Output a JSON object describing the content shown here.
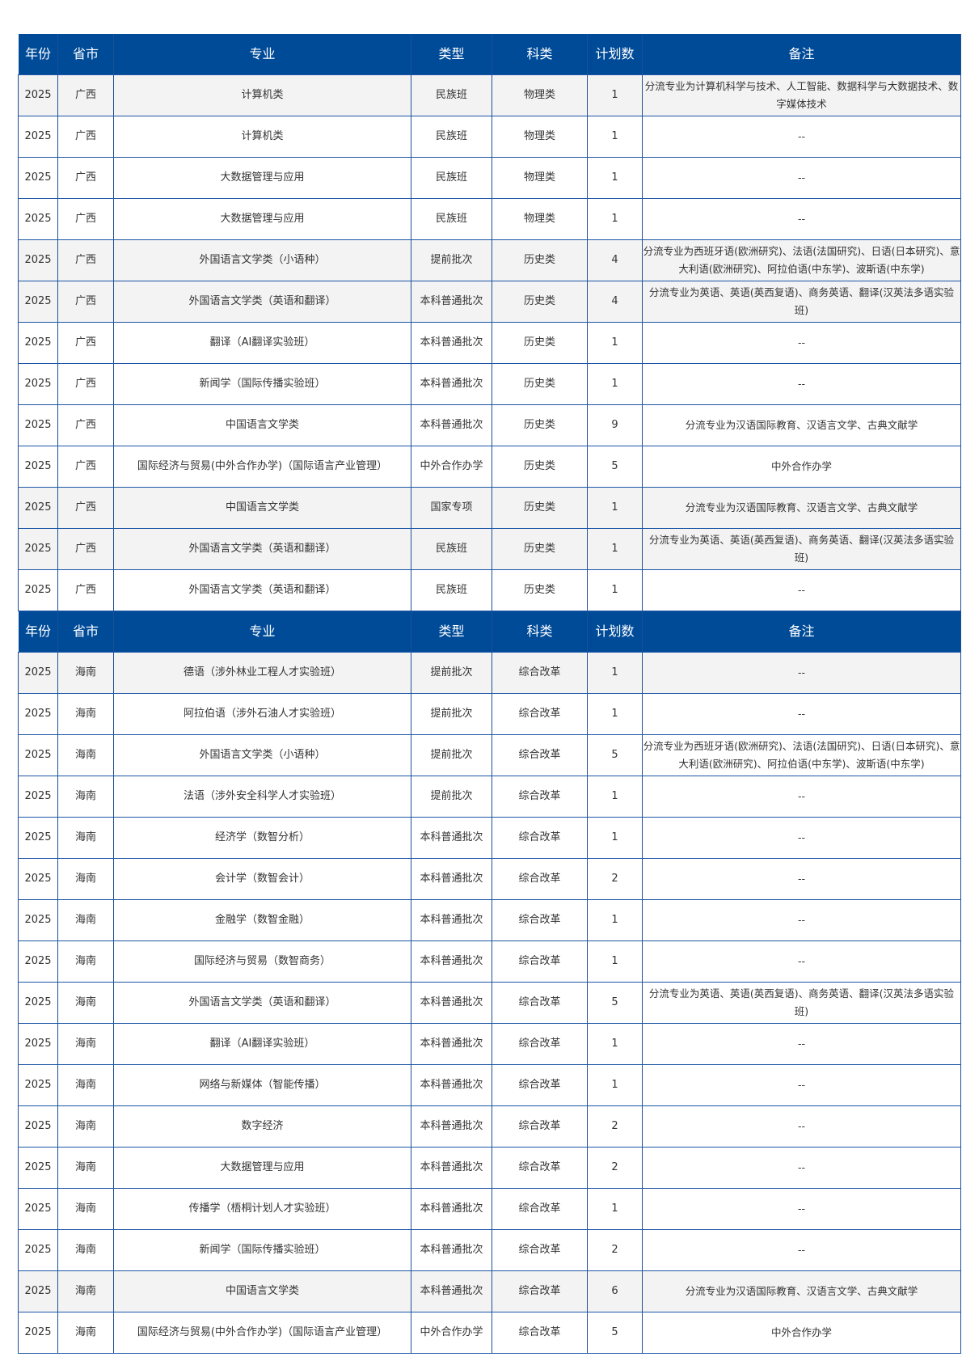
{
  "columns": [
    "年份",
    "省市",
    "专业",
    "类型",
    "科类",
    "计划数",
    "备注"
  ],
  "colors": {
    "header_bg": "#004b98",
    "border": "#1d56a6",
    "alt_row": "#f3f3f3"
  },
  "sections": [
    {
      "rows": [
        {
          "year": "2025",
          "province": "广西",
          "major": "计算机类",
          "type": "民族班",
          "category": "物理类",
          "plan": "1",
          "note": "分流专业为计算机科学与技术、人工智能、数据科学与大数据技术、数字媒体技术",
          "gray": true
        },
        {
          "year": "2025",
          "province": "广西",
          "major": "计算机类",
          "type": "民族班",
          "category": "物理类",
          "plan": "1",
          "note": "--"
        },
        {
          "year": "2025",
          "province": "广西",
          "major": "大数据管理与应用",
          "type": "民族班",
          "category": "物理类",
          "plan": "1",
          "note": "--"
        },
        {
          "year": "2025",
          "province": "广西",
          "major": "大数据管理与应用",
          "type": "民族班",
          "category": "物理类",
          "plan": "1",
          "note": "--"
        },
        {
          "year": "2025",
          "province": "广西",
          "major": "外国语言文学类（小语种）",
          "type": "提前批次",
          "category": "历史类",
          "plan": "4",
          "note": "分流专业为西班牙语(欧洲研究)、法语(法国研究)、日语(日本研究)、意大利语(欧洲研究)、阿拉伯语(中东学)、波斯语(中东学)",
          "gray": true
        },
        {
          "year": "2025",
          "province": "广西",
          "major": "外国语言文学类（英语和翻译）",
          "type": "本科普通批次",
          "category": "历史类",
          "plan": "4",
          "note": "分流专业为英语、英语(英西复语)、商务英语、翻译(汉英法多语实验班)",
          "gray": true
        },
        {
          "year": "2025",
          "province": "广西",
          "major": "翻译（AI翻译实验班）",
          "type": "本科普通批次",
          "category": "历史类",
          "plan": "1",
          "note": "--"
        },
        {
          "year": "2025",
          "province": "广西",
          "major": "新闻学（国际传播实验班）",
          "type": "本科普通批次",
          "category": "历史类",
          "plan": "1",
          "note": "--"
        },
        {
          "year": "2025",
          "province": "广西",
          "major": "中国语言文学类",
          "type": "本科普通批次",
          "category": "历史类",
          "plan": "9",
          "note": "分流专业为汉语国际教育、汉语言文学、古典文献学"
        },
        {
          "year": "2025",
          "province": "广西",
          "major": "国际经济与贸易(中外合作办学)（国际语言产业管理）",
          "type": "中外合作办学",
          "category": "历史类",
          "plan": "5",
          "note": "中外合作办学"
        },
        {
          "year": "2025",
          "province": "广西",
          "major": "中国语言文学类",
          "type": "国家专项",
          "category": "历史类",
          "plan": "1",
          "note": "分流专业为汉语国际教育、汉语言文学、古典文献学",
          "gray": true
        },
        {
          "year": "2025",
          "province": "广西",
          "major": "外国语言文学类（英语和翻译）",
          "type": "民族班",
          "category": "历史类",
          "plan": "1",
          "note": "分流专业为英语、英语(英西复语)、商务英语、翻译(汉英法多语实验班)",
          "gray": true
        },
        {
          "year": "2025",
          "province": "广西",
          "major": "外国语言文学类（英语和翻译）",
          "type": "民族班",
          "category": "历史类",
          "plan": "1",
          "note": "--"
        }
      ]
    },
    {
      "rows": [
        {
          "year": "2025",
          "province": "海南",
          "major": "德语（涉外林业工程人才实验班）",
          "type": "提前批次",
          "category": "综合改革",
          "plan": "1",
          "note": "--",
          "gray": true
        },
        {
          "year": "2025",
          "province": "海南",
          "major": "阿拉伯语（涉外石油人才实验班）",
          "type": "提前批次",
          "category": "综合改革",
          "plan": "1",
          "note": "--"
        },
        {
          "year": "2025",
          "province": "海南",
          "major": "外国语言文学类（小语种）",
          "type": "提前批次",
          "category": "综合改革",
          "plan": "5",
          "note": "分流专业为西班牙语(欧洲研究)、法语(法国研究)、日语(日本研究)、意大利语(欧洲研究)、阿拉伯语(中东学)、波斯语(中东学)"
        },
        {
          "year": "2025",
          "province": "海南",
          "major": "法语（涉外安全科学人才实验班）",
          "type": "提前批次",
          "category": "综合改革",
          "plan": "1",
          "note": "--"
        },
        {
          "year": "2025",
          "province": "海南",
          "major": "经济学（数智分析）",
          "type": "本科普通批次",
          "category": "综合改革",
          "plan": "1",
          "note": "--"
        },
        {
          "year": "2025",
          "province": "海南",
          "major": "会计学（数智会计）",
          "type": "本科普通批次",
          "category": "综合改革",
          "plan": "2",
          "note": "--"
        },
        {
          "year": "2025",
          "province": "海南",
          "major": "金融学（数智金融）",
          "type": "本科普通批次",
          "category": "综合改革",
          "plan": "1",
          "note": "--"
        },
        {
          "year": "2025",
          "province": "海南",
          "major": "国际经济与贸易（数智商务）",
          "type": "本科普通批次",
          "category": "综合改革",
          "plan": "1",
          "note": "--"
        },
        {
          "year": "2025",
          "province": "海南",
          "major": "外国语言文学类（英语和翻译）",
          "type": "本科普通批次",
          "category": "综合改革",
          "plan": "5",
          "note": "分流专业为英语、英语(英西复语)、商务英语、翻译(汉英法多语实验班)"
        },
        {
          "year": "2025",
          "province": "海南",
          "major": "翻译（AI翻译实验班）",
          "type": "本科普通批次",
          "category": "综合改革",
          "plan": "1",
          "note": "--"
        },
        {
          "year": "2025",
          "province": "海南",
          "major": "网络与新媒体（智能传播）",
          "type": "本科普通批次",
          "category": "综合改革",
          "plan": "1",
          "note": "--"
        },
        {
          "year": "2025",
          "province": "海南",
          "major": "数字经济",
          "type": "本科普通批次",
          "category": "综合改革",
          "plan": "2",
          "note": "--"
        },
        {
          "year": "2025",
          "province": "海南",
          "major": "大数据管理与应用",
          "type": "本科普通批次",
          "category": "综合改革",
          "plan": "2",
          "note": "--"
        },
        {
          "year": "2025",
          "province": "海南",
          "major": "传播学（梧桐计划人才实验班）",
          "type": "本科普通批次",
          "category": "综合改革",
          "plan": "1",
          "note": "--"
        },
        {
          "year": "2025",
          "province": "海南",
          "major": "新闻学（国际传播实验班）",
          "type": "本科普通批次",
          "category": "综合改革",
          "plan": "2",
          "note": "--"
        },
        {
          "year": "2025",
          "province": "海南",
          "major": "中国语言文学类",
          "type": "本科普通批次",
          "category": "综合改革",
          "plan": "6",
          "note": "分流专业为汉语国际教育、汉语言文学、古典文献学",
          "gray": true
        },
        {
          "year": "2025",
          "province": "海南",
          "major": "国际经济与贸易(中外合作办学)（国际语言产业管理）",
          "type": "中外合作办学",
          "category": "综合改革",
          "plan": "5",
          "note": "中外合作办学"
        }
      ]
    }
  ]
}
